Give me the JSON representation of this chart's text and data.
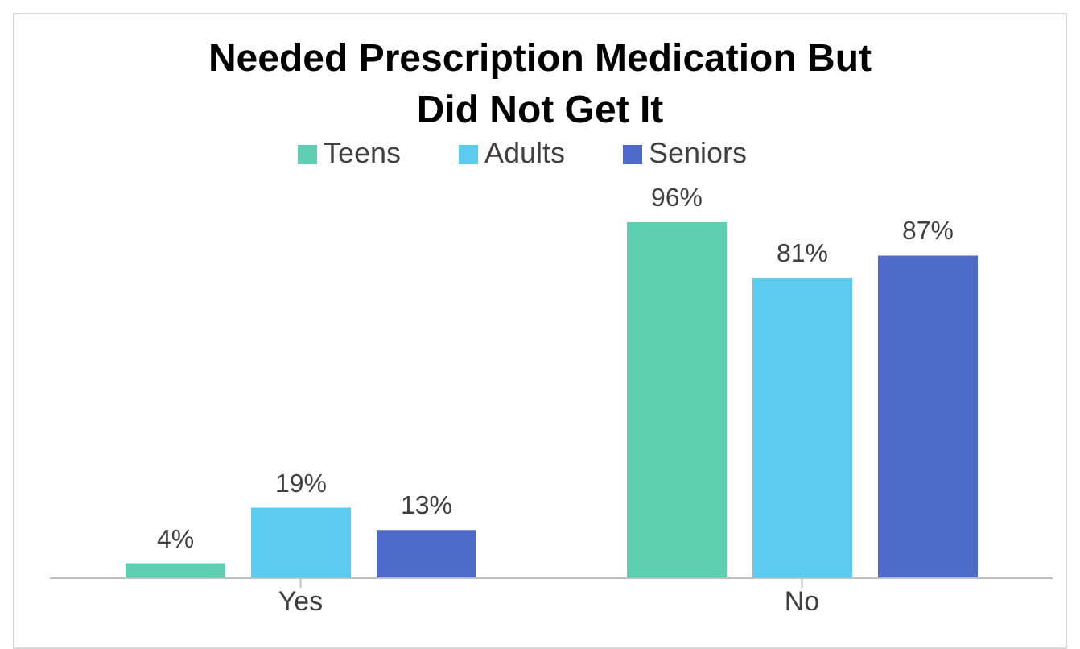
{
  "chart_data": {
    "type": "bar",
    "title": "Needed Prescription Medication But Did Not Get It",
    "categories": [
      "Yes",
      "No"
    ],
    "legend": "top",
    "series": [
      {
        "name": "Teens",
        "color": "#5ecfb1",
        "values": [
          4,
          96
        ],
        "value_labels": [
          "4%",
          "96%"
        ]
      },
      {
        "name": "Adults",
        "color": "#5bcbf0",
        "values": [
          19,
          81
        ],
        "value_labels": [
          "19%",
          "81%"
        ]
      },
      {
        "name": "Seniors",
        "color": "#4f6bc9",
        "values": [
          13,
          87
        ],
        "value_labels": [
          "13%",
          "87%"
        ]
      }
    ]
  }
}
